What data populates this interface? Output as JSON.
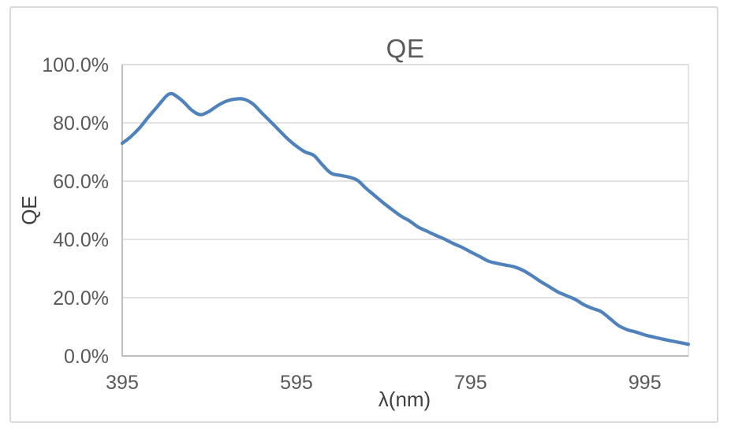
{
  "chart_data": {
    "type": "line",
    "title": "QE",
    "xlabel": "λ(nm)",
    "ylabel": "QE",
    "xlim": [
      395,
      1045
    ],
    "ylim": [
      0,
      100
    ],
    "x_ticks": [
      395,
      595,
      795,
      995
    ],
    "y_ticks": [
      0,
      20,
      40,
      60,
      80,
      100
    ],
    "y_tick_labels": [
      "0.0%",
      "20.0%",
      "40.0%",
      "60.0%",
      "80.0%",
      "100.0%"
    ],
    "grid": "horizontal",
    "legend": "none",
    "line_smooth": true,
    "colors": {
      "series": "#4F81BD",
      "gridline": "#D9D9D9",
      "axis_line": "#BFBFBF",
      "frame_border": "#D9D9D9",
      "tick_text": "#595959",
      "title_text": "#595959",
      "background": "#FFFFFF"
    },
    "series": [
      {
        "name": "QE",
        "x": [
          395,
          405,
          415,
          425,
          435,
          445,
          450,
          455,
          465,
          475,
          485,
          495,
          505,
          515,
          525,
          535,
          545,
          555,
          565,
          575,
          585,
          595,
          605,
          615,
          625,
          635,
          645,
          655,
          665,
          675,
          685,
          695,
          705,
          715,
          725,
          735,
          745,
          755,
          765,
          775,
          785,
          795,
          805,
          815,
          825,
          835,
          845,
          855,
          865,
          875,
          885,
          895,
          905,
          915,
          925,
          935,
          945,
          955,
          965,
          975,
          985,
          995,
          1005,
          1015,
          1025,
          1035,
          1045
        ],
        "y": [
          73,
          75.3,
          78.3,
          82,
          85.5,
          89,
          90,
          89.6,
          87.3,
          84.3,
          82.8,
          84,
          86,
          87.5,
          88.2,
          88.1,
          86.5,
          83.5,
          80.5,
          77.5,
          74.5,
          72,
          70,
          68.8,
          65.5,
          62.7,
          62,
          61.4,
          60.3,
          57.5,
          55,
          52.5,
          50.2,
          48,
          46.3,
          44.2,
          42.8,
          41.4,
          40.1,
          38.6,
          37.3,
          35.7,
          34.2,
          32.6,
          31.8,
          31.2,
          30.6,
          29.4,
          27.6,
          25.6,
          23.8,
          22,
          20.7,
          19.4,
          17.6,
          16.3,
          15.2,
          12.8,
          10.4,
          9,
          8.2,
          7.2,
          6.5,
          5.8,
          5.2,
          4.6,
          4
        ]
      }
    ]
  }
}
